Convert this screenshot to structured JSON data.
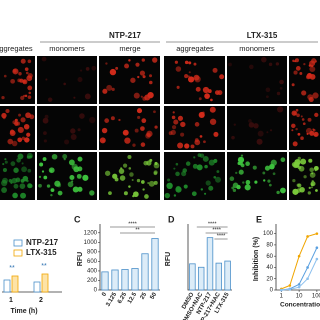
{
  "figure": {
    "groups": [
      {
        "title": "NTP-217",
        "columns": [
          "ggregates",
          "monomers",
          "merge"
        ]
      },
      {
        "title": "LTX-315",
        "columns": [
          "aggregates",
          "monomers"
        ]
      }
    ],
    "panel_b": {
      "legend": [
        "NTP-217",
        "LTX-315"
      ],
      "xlabel": "Time (h)",
      "xticks": [
        "1",
        "2"
      ],
      "stars": [
        "**",
        "**"
      ]
    }
  },
  "chart_data": [
    {
      "type": "bar",
      "label": "C",
      "ylabel": "RFU",
      "color": "#4a8fc9",
      "categories": [
        "0",
        "3.125",
        "6.25",
        "12.5",
        "25",
        "50"
      ],
      "values": [
        380,
        420,
        430,
        450,
        760,
        1080
      ],
      "ylim": [
        0,
        1300
      ],
      "yticks": [
        0,
        200,
        400,
        600,
        800,
        1000,
        1200
      ],
      "annotations": [
        "****",
        "**"
      ]
    },
    {
      "type": "bar",
      "label": "D",
      "ylabel": "RFU",
      "color": "#4a8fc9",
      "categories": [
        "DMSO",
        "DMSO+NAC",
        "NTP-217",
        "NTP-217+NAC",
        "LTX-315"
      ],
      "values": [
        380,
        330,
        760,
        390,
        420
      ],
      "ylim": [
        0,
        900
      ],
      "annotations": [
        "****",
        "****",
        "****"
      ]
    },
    {
      "type": "line",
      "label": "E",
      "ylabel": "Inhibition (%)",
      "xlabel": "Concentration (",
      "log_x": true,
      "xlim": [
        0.5,
        150
      ],
      "xticks": [
        1,
        10,
        100
      ],
      "ylim": [
        0,
        110
      ],
      "yticks": [
        0,
        20,
        40,
        60,
        80,
        100
      ],
      "x": [
        1,
        3,
        10,
        30,
        100
      ],
      "series": [
        {
          "color": "#f0a500",
          "values": [
            2,
            8,
            60,
            95,
            100
          ]
        },
        {
          "color": "#5aa0e0",
          "values": [
            0,
            2,
            10,
            40,
            75
          ]
        },
        {
          "color": "#8cc0ee",
          "values": [
            0,
            1,
            5,
            20,
            55
          ]
        }
      ]
    }
  ]
}
